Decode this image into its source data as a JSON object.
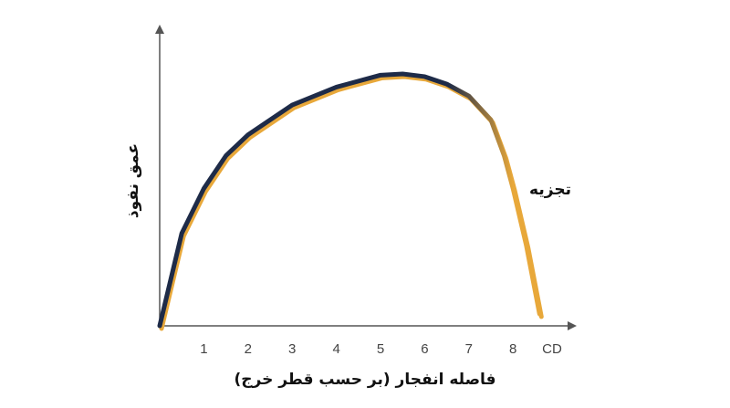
{
  "chart_data": {
    "type": "line",
    "y_label": "عمق نفوذ",
    "x_label": "فاصله انفجار (بر حسب قطر خرج)",
    "x_unit": "CD",
    "annotation": "تجزیه",
    "x": [
      0,
      0.5,
      1,
      1.5,
      2,
      3,
      4,
      5,
      5.5,
      6,
      6.5,
      7,
      7.5,
      7.8,
      8,
      8.3,
      8.6
    ],
    "series": [
      {
        "color": "#1e2b48",
        "end_color": "#e8a83a",
        "values": [
          0,
          31,
          46,
          57,
          64,
          74,
          80,
          84,
          84.4,
          83.5,
          81,
          77,
          69,
          57,
          46,
          27,
          4
        ]
      }
    ],
    "xlim": [
      0,
      9.4
    ],
    "ylim": [
      0,
      100
    ],
    "xticks": [
      1,
      2,
      3,
      4,
      5,
      6,
      7,
      8
    ],
    "grid": false
  }
}
